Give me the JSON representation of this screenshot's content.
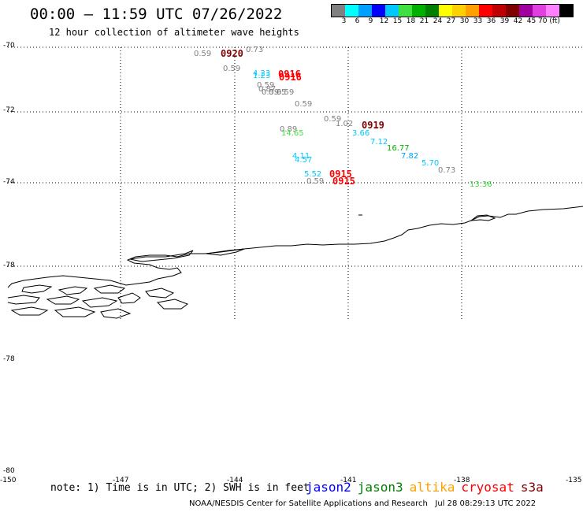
{
  "header": {
    "title": "00:00 – 11:59 UTC 07/26/2022",
    "subtitle": "12 hour collection of altimeter wave heights"
  },
  "color_scale": {
    "colors": [
      "#808080",
      "#00ffff",
      "#00a0ff",
      "#0000ff",
      "#00c8ff",
      "#40e040",
      "#00b000",
      "#008000",
      "#ffff00",
      "#ffd000",
      "#ffa000",
      "#ff0000",
      "#c00000",
      "#800000",
      "#a000a0",
      "#e040e0",
      "#ff80ff",
      "#000000"
    ],
    "labels": [
      "3",
      "6",
      "9",
      "12",
      "15",
      "18",
      "21",
      "24",
      "27",
      "30",
      "33",
      "36",
      "39",
      "42",
      "45",
      "70 (ft)"
    ]
  },
  "axes": {
    "lat_labels": [
      "-70",
      "-72",
      "-74",
      "-78",
      "-78",
      "-80"
    ],
    "lon_labels": [
      "-150",
      "-147",
      "-144",
      "-141",
      "-138",
      "-135"
    ]
  },
  "wave_heights": [
    {
      "text": "0.59",
      "color": "#808080"
    },
    {
      "text": "0.73",
      "color": "#808080"
    },
    {
      "text": "0.59",
      "color": "#808080"
    },
    {
      "text": "4.23",
      "color": "#00c8ff"
    },
    {
      "text": "1.23",
      "color": "#00c8ff"
    },
    {
      "text": "0.59",
      "color": "#808080"
    },
    {
      "text": "0.87",
      "color": "#808080"
    },
    {
      "text": "0.59",
      "color": "#808080"
    },
    {
      "text": "0.65",
      "color": "#808080"
    },
    {
      "text": "0.59",
      "color": "#808080"
    },
    {
      "text": "0.59",
      "color": "#808080"
    },
    {
      "text": "0.59",
      "color": "#808080"
    },
    {
      "text": "1.02",
      "color": "#808080"
    },
    {
      "text": "0.89",
      "color": "#808080"
    },
    {
      "text": "14.65",
      "color": "#40e040"
    },
    {
      "text": "3.66",
      "color": "#00c8ff"
    },
    {
      "text": "7.12",
      "color": "#00c8ff"
    },
    {
      "text": "16.77",
      "color": "#00b000"
    },
    {
      "text": "7.82",
      "color": "#00a0ff"
    },
    {
      "text": "5.70",
      "color": "#00c8ff"
    },
    {
      "text": "0.73",
      "color": "#808080"
    },
    {
      "text": "4.11",
      "color": "#00c8ff"
    },
    {
      "text": "4.57",
      "color": "#00c8ff"
    },
    {
      "text": "5.52",
      "color": "#00c8ff"
    },
    {
      "text": "0.59",
      "color": "#808080"
    },
    {
      "text": "13.36",
      "color": "#40e040"
    }
  ],
  "pass_times": [
    {
      "text": "0920",
      "color": "#800000"
    },
    {
      "text": "0916",
      "color": "#ff0000"
    },
    {
      "text": "0916",
      "color": "#ff0000"
    },
    {
      "text": "0919",
      "color": "#800000"
    },
    {
      "text": "0915",
      "color": "#ff0000"
    },
    {
      "text": "0915",
      "color": "#ff0000"
    }
  ],
  "footer": {
    "note": "note: 1) Time is in UTC; 2) SWH is in feet",
    "satellites": [
      {
        "name": "jason2",
        "color": "#0000ff"
      },
      {
        "name": "jason3",
        "color": "#008000"
      },
      {
        "name": "altika",
        "color": "#ffa000"
      },
      {
        "name": "cryosat",
        "color": "#ff0000"
      },
      {
        "name": "s3a",
        "color": "#800000"
      }
    ],
    "credit": "NOAA/NESDIS Center for Satellite Applications and Research   Jul 28 08:29:13 UTC 2022"
  }
}
